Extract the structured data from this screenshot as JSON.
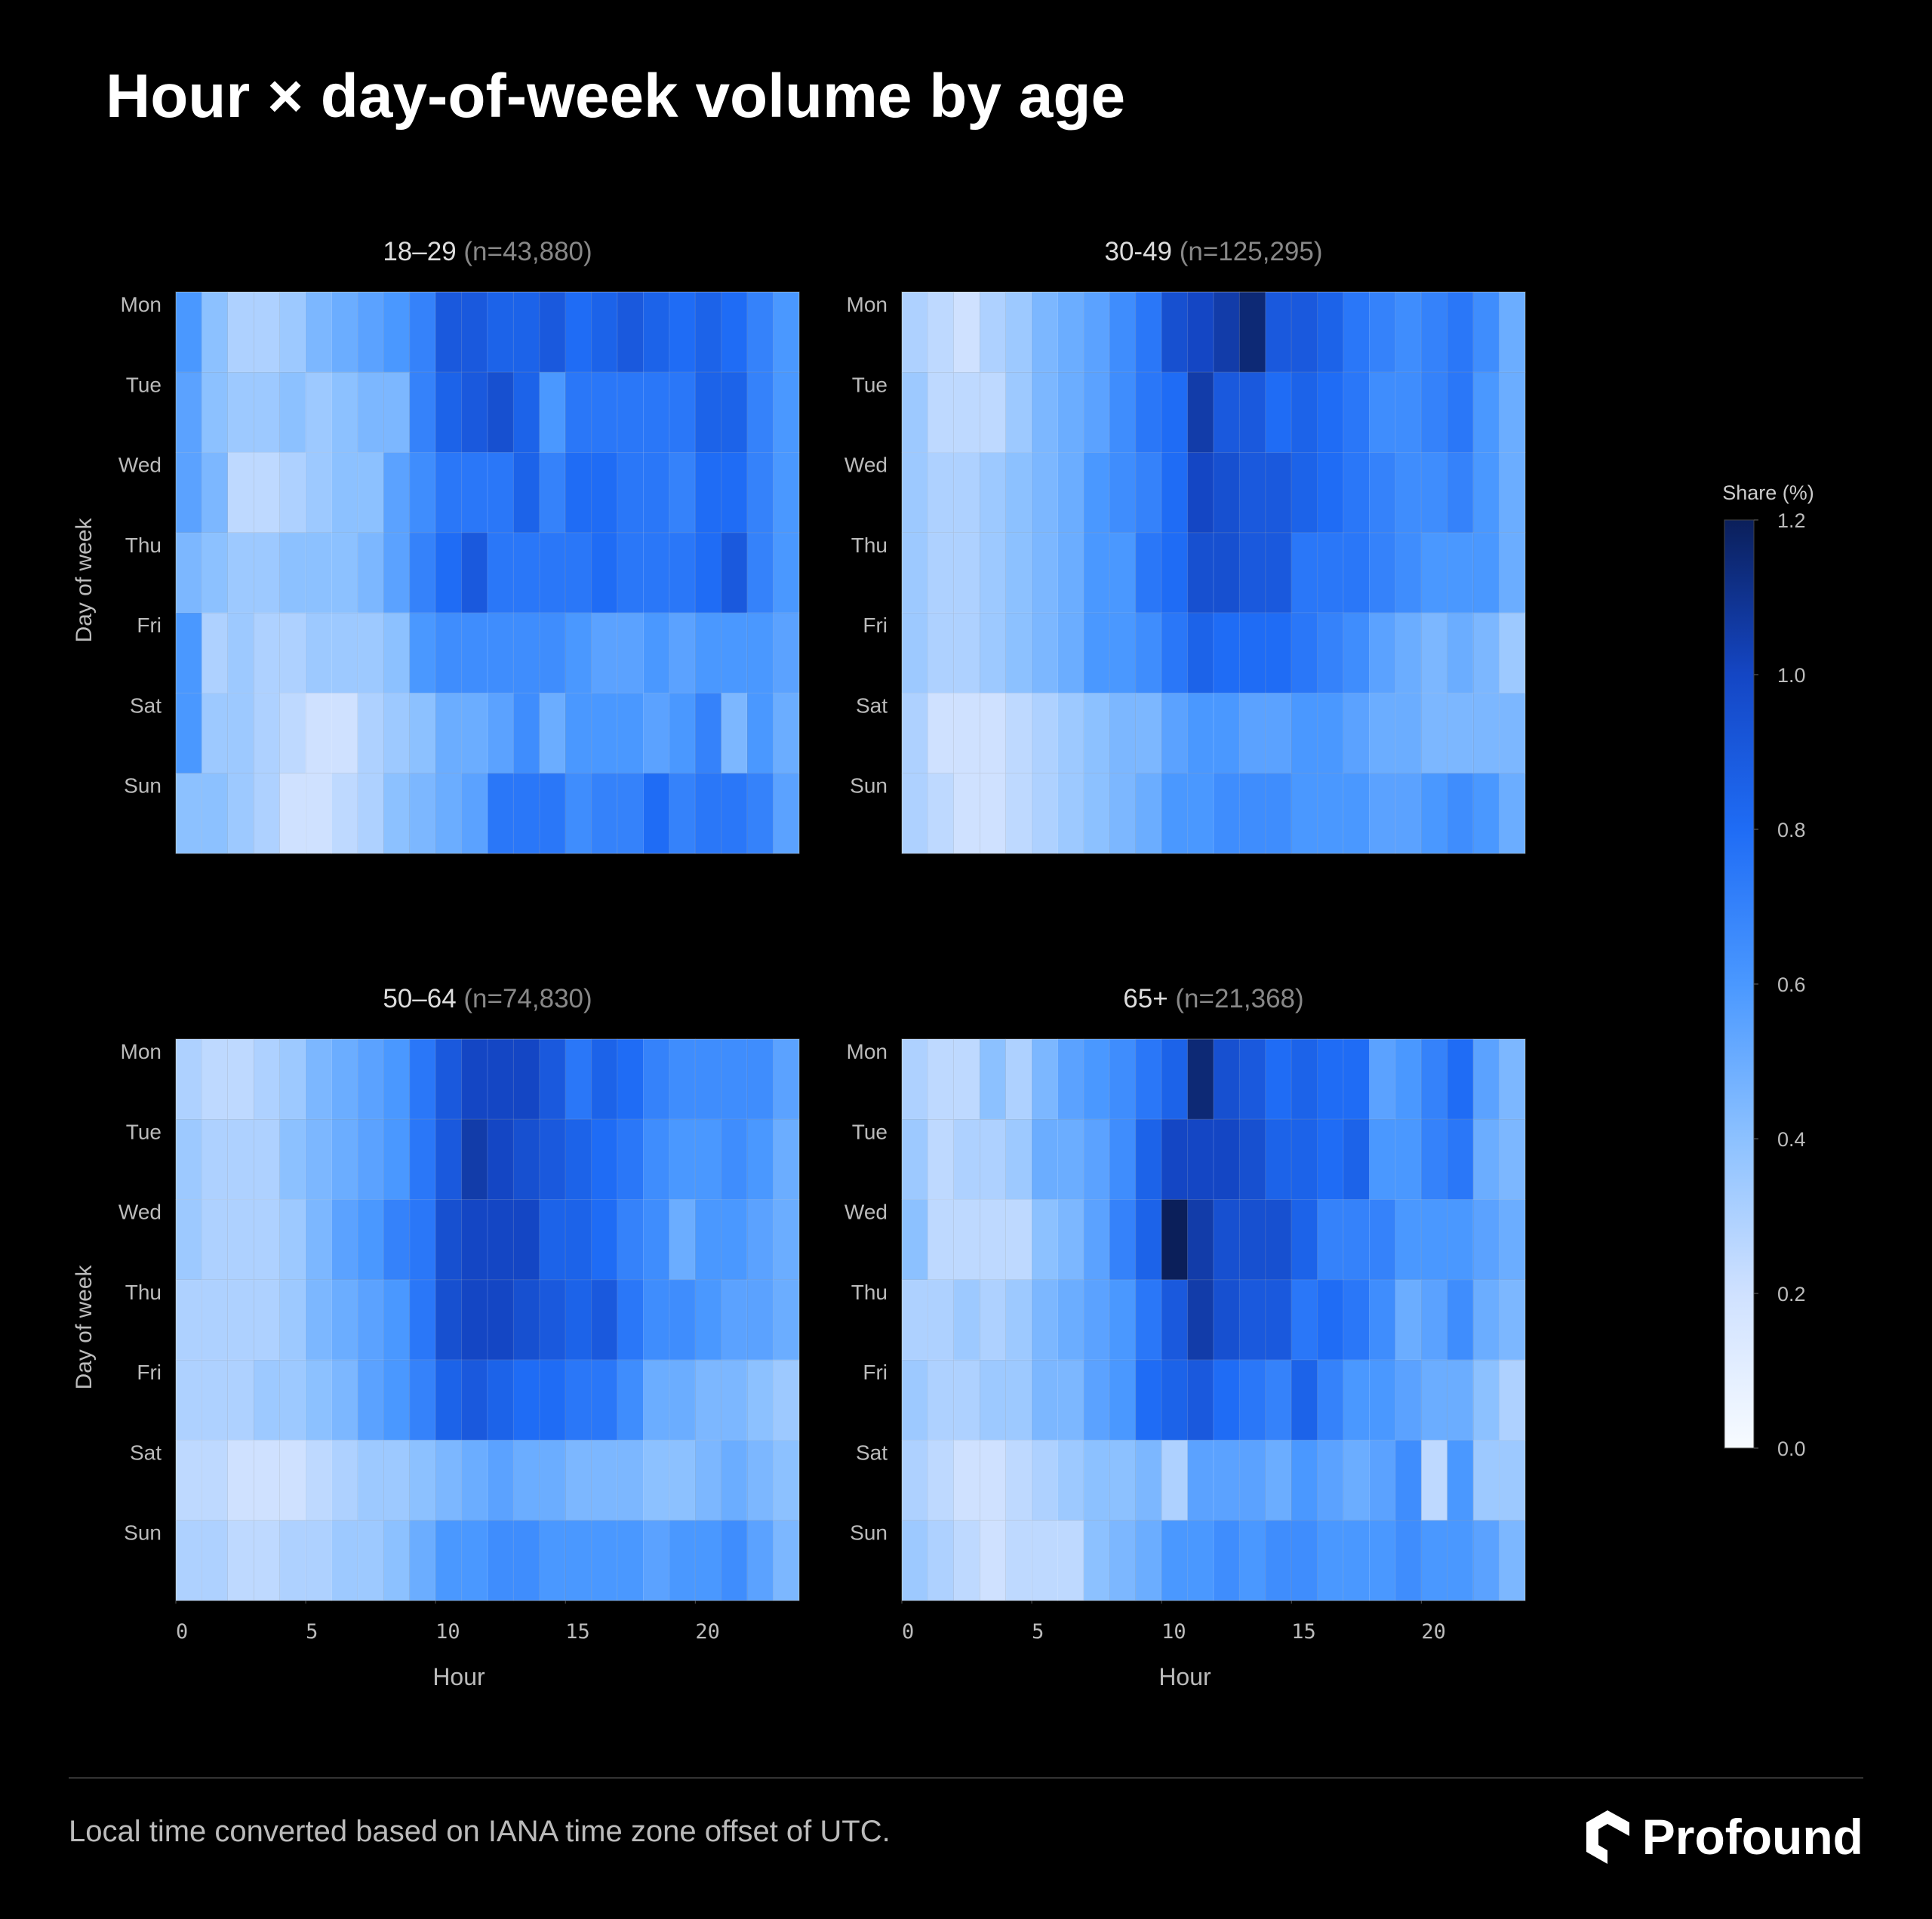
{
  "title": "Hour × day-of-week volume by age",
  "footer": "Local time converted based on IANA time zone offset of UTC.",
  "brand": "Profound",
  "colorbar": {
    "title": "Share (%)",
    "lim": [
      0,
      1.2
    ],
    "ticks": [
      {
        "value": 0,
        "label": "0.0"
      },
      0.2,
      0.4,
      0.6,
      0.8,
      {
        "value": 1,
        "label": "1.0"
      },
      1.2
    ],
    "colors": [
      "#f7fbff",
      "#cfe1ff",
      "#8cc1ff",
      "#4a98ff",
      "#1f6cf5",
      "#1446c4",
      "#0b1f5a"
    ]
  },
  "chart_data": [
    {
      "type": "heatmap",
      "title": "18–29",
      "subtitle": "(n=43,880)",
      "ylabel": "Day of week",
      "categories": [
        "Mon",
        "Tue",
        "Wed",
        "Thu",
        "Fri",
        "Sat",
        "Sun"
      ],
      "x": [
        0,
        1,
        2,
        3,
        4,
        5,
        6,
        7,
        8,
        9,
        10,
        11,
        12,
        13,
        14,
        15,
        16,
        17,
        18,
        19,
        20,
        21,
        22,
        23
      ],
      "xlim": [
        0,
        24
      ],
      "values": [
        [
          0.6,
          0.4,
          0.3,
          0.3,
          0.35,
          0.45,
          0.5,
          0.55,
          0.6,
          0.7,
          0.9,
          0.9,
          0.85,
          0.85,
          0.9,
          0.8,
          0.85,
          0.9,
          0.85,
          0.8,
          0.85,
          0.8,
          0.7,
          0.6
        ],
        [
          0.55,
          0.4,
          0.35,
          0.35,
          0.4,
          0.35,
          0.4,
          0.45,
          0.45,
          0.7,
          0.85,
          0.9,
          0.95,
          0.85,
          0.6,
          0.75,
          0.75,
          0.75,
          0.75,
          0.75,
          0.85,
          0.85,
          0.7,
          0.6
        ],
        [
          0.55,
          0.45,
          0.25,
          0.25,
          0.3,
          0.35,
          0.4,
          0.4,
          0.55,
          0.65,
          0.75,
          0.75,
          0.75,
          0.85,
          0.7,
          0.8,
          0.8,
          0.75,
          0.75,
          0.7,
          0.8,
          0.8,
          0.7,
          0.6
        ],
        [
          0.45,
          0.4,
          0.35,
          0.35,
          0.4,
          0.4,
          0.4,
          0.45,
          0.55,
          0.7,
          0.8,
          0.9,
          0.75,
          0.75,
          0.75,
          0.75,
          0.8,
          0.75,
          0.75,
          0.75,
          0.8,
          0.9,
          0.7,
          0.6
        ],
        [
          0.6,
          0.3,
          0.35,
          0.3,
          0.3,
          0.35,
          0.35,
          0.35,
          0.4,
          0.6,
          0.65,
          0.65,
          0.65,
          0.65,
          0.65,
          0.6,
          0.55,
          0.55,
          0.6,
          0.55,
          0.6,
          0.6,
          0.6,
          0.55
        ],
        [
          0.6,
          0.35,
          0.35,
          0.3,
          0.25,
          0.2,
          0.2,
          0.3,
          0.35,
          0.4,
          0.5,
          0.5,
          0.55,
          0.65,
          0.5,
          0.6,
          0.6,
          0.6,
          0.55,
          0.6,
          0.7,
          0.45,
          0.6,
          0.5
        ],
        [
          0.4,
          0.4,
          0.35,
          0.3,
          0.2,
          0.2,
          0.25,
          0.3,
          0.4,
          0.45,
          0.5,
          0.55,
          0.75,
          0.75,
          0.75,
          0.65,
          0.7,
          0.7,
          0.8,
          0.7,
          0.75,
          0.75,
          0.7,
          0.55
        ]
      ]
    },
    {
      "type": "heatmap",
      "title": "30-49",
      "subtitle": "(n=125,295)",
      "categories": [
        "Mon",
        "Tue",
        "Wed",
        "Thu",
        "Fri",
        "Sat",
        "Sun"
      ],
      "x": [
        0,
        1,
        2,
        3,
        4,
        5,
        6,
        7,
        8,
        9,
        10,
        11,
        12,
        13,
        14,
        15,
        16,
        17,
        18,
        19,
        20,
        21,
        22,
        23
      ],
      "xlim": [
        0,
        24
      ],
      "values": [
        [
          0.3,
          0.25,
          0.2,
          0.3,
          0.35,
          0.45,
          0.5,
          0.55,
          0.65,
          0.75,
          0.95,
          1.0,
          1.05,
          1.15,
          0.9,
          0.9,
          0.85,
          0.75,
          0.7,
          0.65,
          0.7,
          0.75,
          0.65,
          0.5
        ],
        [
          0.35,
          0.25,
          0.25,
          0.25,
          0.35,
          0.45,
          0.5,
          0.55,
          0.65,
          0.75,
          0.8,
          1.05,
          0.9,
          0.9,
          0.8,
          0.85,
          0.8,
          0.75,
          0.65,
          0.65,
          0.7,
          0.75,
          0.6,
          0.5
        ],
        [
          0.35,
          0.3,
          0.3,
          0.35,
          0.4,
          0.45,
          0.5,
          0.6,
          0.65,
          0.7,
          0.8,
          1.0,
          0.95,
          0.9,
          0.9,
          0.85,
          0.8,
          0.75,
          0.7,
          0.65,
          0.65,
          0.7,
          0.6,
          0.5
        ],
        [
          0.35,
          0.3,
          0.3,
          0.35,
          0.4,
          0.45,
          0.5,
          0.6,
          0.6,
          0.75,
          0.8,
          0.95,
          0.95,
          0.9,
          0.9,
          0.75,
          0.75,
          0.75,
          0.7,
          0.65,
          0.6,
          0.6,
          0.6,
          0.5
        ],
        [
          0.35,
          0.3,
          0.3,
          0.35,
          0.4,
          0.45,
          0.5,
          0.6,
          0.6,
          0.65,
          0.75,
          0.85,
          0.8,
          0.8,
          0.8,
          0.75,
          0.7,
          0.65,
          0.55,
          0.5,
          0.45,
          0.5,
          0.45,
          0.35
        ],
        [
          0.3,
          0.2,
          0.2,
          0.2,
          0.25,
          0.3,
          0.35,
          0.4,
          0.45,
          0.45,
          0.55,
          0.6,
          0.6,
          0.55,
          0.55,
          0.6,
          0.6,
          0.55,
          0.5,
          0.5,
          0.45,
          0.45,
          0.45,
          0.45
        ],
        [
          0.3,
          0.25,
          0.2,
          0.2,
          0.25,
          0.3,
          0.35,
          0.4,
          0.45,
          0.5,
          0.6,
          0.6,
          0.65,
          0.65,
          0.65,
          0.6,
          0.6,
          0.6,
          0.55,
          0.55,
          0.6,
          0.65,
          0.6,
          0.5
        ]
      ]
    },
    {
      "type": "heatmap",
      "title": "50–64",
      "subtitle": "(n=74,830)",
      "ylabel": "Day of week",
      "xlabel": "Hour",
      "categories": [
        "Mon",
        "Tue",
        "Wed",
        "Thu",
        "Fri",
        "Sat",
        "Sun"
      ],
      "x": [
        0,
        1,
        2,
        3,
        4,
        5,
        6,
        7,
        8,
        9,
        10,
        11,
        12,
        13,
        14,
        15,
        16,
        17,
        18,
        19,
        20,
        21,
        22,
        23
      ],
      "xlim": [
        0,
        24
      ],
      "xticks": [
        0,
        5,
        10,
        15,
        20
      ],
      "values": [
        [
          0.3,
          0.25,
          0.25,
          0.3,
          0.35,
          0.45,
          0.5,
          0.55,
          0.6,
          0.75,
          0.9,
          1.0,
          1.0,
          1.0,
          0.9,
          0.75,
          0.85,
          0.8,
          0.7,
          0.65,
          0.65,
          0.65,
          0.65,
          0.55
        ],
        [
          0.35,
          0.3,
          0.3,
          0.3,
          0.4,
          0.45,
          0.5,
          0.55,
          0.6,
          0.75,
          0.9,
          1.05,
          1.0,
          0.95,
          0.9,
          0.85,
          0.8,
          0.75,
          0.65,
          0.6,
          0.6,
          0.65,
          0.6,
          0.5
        ],
        [
          0.35,
          0.3,
          0.3,
          0.3,
          0.35,
          0.45,
          0.55,
          0.6,
          0.7,
          0.75,
          0.95,
          1.0,
          1.0,
          1.0,
          0.85,
          0.85,
          0.8,
          0.7,
          0.65,
          0.5,
          0.6,
          0.6,
          0.55,
          0.5
        ],
        [
          0.3,
          0.3,
          0.3,
          0.3,
          0.35,
          0.45,
          0.5,
          0.55,
          0.6,
          0.75,
          0.95,
          1.0,
          1.0,
          0.95,
          0.9,
          0.85,
          0.9,
          0.75,
          0.65,
          0.65,
          0.6,
          0.55,
          0.55,
          0.5
        ],
        [
          0.3,
          0.3,
          0.3,
          0.35,
          0.35,
          0.4,
          0.45,
          0.55,
          0.6,
          0.7,
          0.85,
          0.9,
          0.85,
          0.8,
          0.8,
          0.75,
          0.75,
          0.65,
          0.5,
          0.5,
          0.45,
          0.45,
          0.4,
          0.35
        ],
        [
          0.25,
          0.25,
          0.2,
          0.2,
          0.2,
          0.25,
          0.3,
          0.35,
          0.35,
          0.4,
          0.45,
          0.5,
          0.55,
          0.5,
          0.5,
          0.45,
          0.45,
          0.45,
          0.4,
          0.4,
          0.45,
          0.5,
          0.45,
          0.4
        ],
        [
          0.3,
          0.3,
          0.25,
          0.25,
          0.3,
          0.3,
          0.35,
          0.35,
          0.4,
          0.5,
          0.6,
          0.6,
          0.65,
          0.65,
          0.6,
          0.6,
          0.6,
          0.6,
          0.55,
          0.6,
          0.6,
          0.65,
          0.55,
          0.45
        ]
      ]
    },
    {
      "type": "heatmap",
      "title": "65+",
      "subtitle": "(n=21,368)",
      "xlabel": "Hour",
      "categories": [
        "Mon",
        "Tue",
        "Wed",
        "Thu",
        "Fri",
        "Sat",
        "Sun"
      ],
      "x": [
        0,
        1,
        2,
        3,
        4,
        5,
        6,
        7,
        8,
        9,
        10,
        11,
        12,
        13,
        14,
        15,
        16,
        17,
        18,
        19,
        20,
        21,
        22,
        23
      ],
      "xlim": [
        0,
        24
      ],
      "xticks": [
        0,
        5,
        10,
        15,
        20
      ],
      "values": [
        [
          0.3,
          0.25,
          0.25,
          0.4,
          0.3,
          0.45,
          0.55,
          0.6,
          0.65,
          0.75,
          0.85,
          1.15,
          0.95,
          0.9,
          0.8,
          0.85,
          0.8,
          0.8,
          0.55,
          0.6,
          0.7,
          0.8,
          0.55,
          0.45
        ],
        [
          0.35,
          0.25,
          0.3,
          0.3,
          0.35,
          0.5,
          0.5,
          0.55,
          0.65,
          0.85,
          1.0,
          1.0,
          1.0,
          0.95,
          0.85,
          0.85,
          0.8,
          0.85,
          0.6,
          0.6,
          0.7,
          0.75,
          0.5,
          0.45
        ],
        [
          0.4,
          0.25,
          0.25,
          0.25,
          0.25,
          0.4,
          0.45,
          0.55,
          0.7,
          0.85,
          1.2,
          1.05,
          0.95,
          0.95,
          0.95,
          0.85,
          0.7,
          0.7,
          0.7,
          0.6,
          0.6,
          0.6,
          0.55,
          0.5
        ],
        [
          0.3,
          0.3,
          0.35,
          0.3,
          0.35,
          0.45,
          0.5,
          0.55,
          0.6,
          0.75,
          0.9,
          1.05,
          0.95,
          0.9,
          0.9,
          0.75,
          0.8,
          0.75,
          0.65,
          0.5,
          0.55,
          0.65,
          0.5,
          0.45
        ],
        [
          0.35,
          0.3,
          0.3,
          0.35,
          0.35,
          0.45,
          0.45,
          0.55,
          0.6,
          0.8,
          0.85,
          0.9,
          0.8,
          0.75,
          0.7,
          0.85,
          0.7,
          0.6,
          0.6,
          0.55,
          0.5,
          0.5,
          0.4,
          0.3
        ],
        [
          0.3,
          0.25,
          0.2,
          0.2,
          0.25,
          0.3,
          0.35,
          0.4,
          0.4,
          0.45,
          0.3,
          0.55,
          0.55,
          0.55,
          0.5,
          0.6,
          0.55,
          0.5,
          0.55,
          0.65,
          0.25,
          0.6,
          0.35,
          0.35
        ],
        [
          0.35,
          0.3,
          0.25,
          0.2,
          0.25,
          0.25,
          0.25,
          0.4,
          0.45,
          0.5,
          0.6,
          0.6,
          0.65,
          0.6,
          0.65,
          0.65,
          0.6,
          0.6,
          0.6,
          0.65,
          0.6,
          0.6,
          0.55,
          0.45
        ]
      ]
    }
  ]
}
